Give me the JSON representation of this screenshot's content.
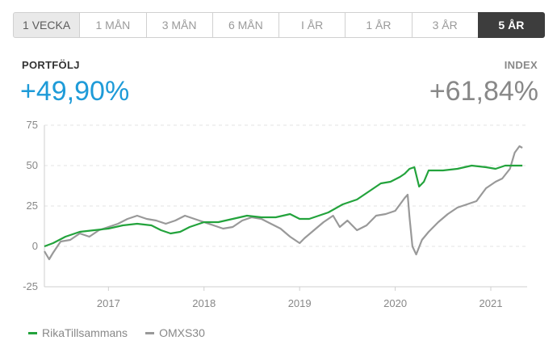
{
  "tabs": [
    {
      "label": "1 VECKA",
      "state": "first"
    },
    {
      "label": "1 MÅN",
      "state": ""
    },
    {
      "label": "3 MÅN",
      "state": ""
    },
    {
      "label": "6 MÅN",
      "state": ""
    },
    {
      "label": "I ÅR",
      "state": ""
    },
    {
      "label": "1 ÅR",
      "state": ""
    },
    {
      "label": "3 ÅR",
      "state": ""
    },
    {
      "label": "5 ÅR",
      "state": "active"
    }
  ],
  "portfolio": {
    "label": "PORTFÖLJ",
    "value": "+49,90%"
  },
  "index": {
    "label": "INDEX",
    "value": "+61,84%"
  },
  "colors": {
    "portfolio": "#1e9bd8",
    "index_text": "#888888",
    "series_portfolio": "#23a33c",
    "series_index": "#999999"
  },
  "chart_data": {
    "type": "line",
    "xlabel": "",
    "ylabel": "",
    "x_ticks": [
      "2017",
      "2018",
      "2019",
      "2020",
      "2021"
    ],
    "y_ticks": [
      -25,
      0,
      25,
      50,
      75
    ],
    "xlim": [
      2016.33,
      2021.38
    ],
    "ylim": [
      -25,
      75
    ],
    "grid": "horizontal dashed",
    "legend_position": "bottom-left",
    "series": [
      {
        "name": "RikaTillsammans",
        "color": "#23a33c",
        "points": [
          [
            2016.33,
            0
          ],
          [
            2016.42,
            2
          ],
          [
            2016.55,
            6
          ],
          [
            2016.7,
            9
          ],
          [
            2016.85,
            10
          ],
          [
            2017.0,
            11
          ],
          [
            2017.15,
            13
          ],
          [
            2017.3,
            14
          ],
          [
            2017.45,
            13
          ],
          [
            2017.55,
            10
          ],
          [
            2017.65,
            8
          ],
          [
            2017.75,
            9
          ],
          [
            2017.85,
            12
          ],
          [
            2018.0,
            15
          ],
          [
            2018.15,
            15
          ],
          [
            2018.3,
            17
          ],
          [
            2018.45,
            19
          ],
          [
            2018.6,
            18
          ],
          [
            2018.75,
            18
          ],
          [
            2018.9,
            20
          ],
          [
            2019.0,
            17
          ],
          [
            2019.1,
            17
          ],
          [
            2019.2,
            19
          ],
          [
            2019.3,
            21
          ],
          [
            2019.45,
            26
          ],
          [
            2019.6,
            29
          ],
          [
            2019.75,
            35
          ],
          [
            2019.85,
            39
          ],
          [
            2019.95,
            40
          ],
          [
            2020.05,
            43
          ],
          [
            2020.1,
            45
          ],
          [
            2020.15,
            48
          ],
          [
            2020.2,
            49
          ],
          [
            2020.25,
            37
          ],
          [
            2020.3,
            40
          ],
          [
            2020.35,
            47
          ],
          [
            2020.5,
            47
          ],
          [
            2020.65,
            48
          ],
          [
            2020.8,
            50
          ],
          [
            2020.95,
            49
          ],
          [
            2021.05,
            48
          ],
          [
            2021.15,
            50
          ],
          [
            2021.25,
            50
          ],
          [
            2021.33,
            50
          ]
        ]
      },
      {
        "name": "OMXS30",
        "color": "#999999",
        "points": [
          [
            2016.33,
            -3
          ],
          [
            2016.38,
            -8
          ],
          [
            2016.42,
            -4
          ],
          [
            2016.5,
            3
          ],
          [
            2016.6,
            4
          ],
          [
            2016.7,
            8
          ],
          [
            2016.8,
            6
          ],
          [
            2016.9,
            10
          ],
          [
            2017.0,
            12
          ],
          [
            2017.1,
            14
          ],
          [
            2017.2,
            17
          ],
          [
            2017.3,
            19
          ],
          [
            2017.4,
            17
          ],
          [
            2017.5,
            16
          ],
          [
            2017.6,
            14
          ],
          [
            2017.7,
            16
          ],
          [
            2017.8,
            19
          ],
          [
            2017.9,
            17
          ],
          [
            2018.0,
            15
          ],
          [
            2018.1,
            13
          ],
          [
            2018.2,
            11
          ],
          [
            2018.3,
            12
          ],
          [
            2018.4,
            16
          ],
          [
            2018.5,
            18
          ],
          [
            2018.6,
            17
          ],
          [
            2018.7,
            14
          ],
          [
            2018.8,
            11
          ],
          [
            2018.9,
            6
          ],
          [
            2019.0,
            2
          ],
          [
            2019.05,
            5
          ],
          [
            2019.15,
            10
          ],
          [
            2019.25,
            15
          ],
          [
            2019.35,
            19
          ],
          [
            2019.42,
            12
          ],
          [
            2019.5,
            16
          ],
          [
            2019.6,
            10
          ],
          [
            2019.7,
            13
          ],
          [
            2019.8,
            19
          ],
          [
            2019.9,
            20
          ],
          [
            2020.0,
            22
          ],
          [
            2020.05,
            26
          ],
          [
            2020.1,
            30
          ],
          [
            2020.13,
            32
          ],
          [
            2020.15,
            18
          ],
          [
            2020.18,
            0
          ],
          [
            2020.22,
            -5
          ],
          [
            2020.28,
            4
          ],
          [
            2020.35,
            9
          ],
          [
            2020.45,
            15
          ],
          [
            2020.55,
            20
          ],
          [
            2020.65,
            24
          ],
          [
            2020.75,
            26
          ],
          [
            2020.85,
            28
          ],
          [
            2020.95,
            36
          ],
          [
            2021.05,
            40
          ],
          [
            2021.12,
            42
          ],
          [
            2021.2,
            48
          ],
          [
            2021.25,
            58
          ],
          [
            2021.3,
            62
          ],
          [
            2021.33,
            61
          ]
        ]
      }
    ]
  }
}
